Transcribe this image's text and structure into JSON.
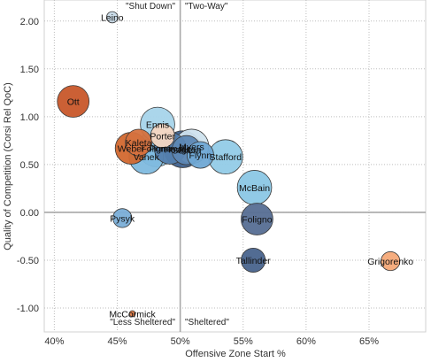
{
  "chart_data": {
    "type": "scatter",
    "title": "",
    "xlabel": "Offensive Zone Start %",
    "ylabel": "Quality of Competition (Corsi Rel QoC)",
    "xlim": [
      39.2,
      69.5
    ],
    "ylim": [
      -1.25,
      2.22
    ],
    "x_ticks": [
      40,
      45,
      50,
      55,
      60,
      65
    ],
    "x_tick_labels": [
      "40%",
      "45%",
      "50%",
      "55%",
      "60%",
      "65%"
    ],
    "y_ticks": [
      -1.0,
      -0.5,
      0.0,
      0.5,
      1.0,
      1.5,
      2.0
    ],
    "y_tick_labels": [
      "-1.00",
      "-0.50",
      "0.00",
      "0.50",
      "1.00",
      "1.50",
      "2.00"
    ],
    "grid": true,
    "reference_lines": {
      "x": 50,
      "y": 0
    },
    "quadrant_labels": {
      "top_left": "\"Shut Down\"",
      "top_right": "\"Two-Way\"",
      "bottom_left": "\"Less Sheltered\"",
      "bottom_right": "\"Sheltered\""
    },
    "points": [
      {
        "name": "Leino",
        "x": 44.6,
        "y": 2.04,
        "size": 3,
        "color": "#c7d9e6"
      },
      {
        "name": "Ott",
        "x": 41.5,
        "y": 1.16,
        "size": 11,
        "color": "#c8572a"
      },
      {
        "name": "Ennis",
        "x": 48.2,
        "y": 0.92,
        "size": 12,
        "color": "#a6d4ea"
      },
      {
        "name": "Porter",
        "x": 48.6,
        "y": 0.8,
        "size": 8,
        "color": "#f6d7c3"
      },
      {
        "name": "Kaleta",
        "x": 46.7,
        "y": 0.73,
        "size": 9,
        "color": "#d5713e"
      },
      {
        "name": "Weber",
        "x": 46.1,
        "y": 0.67,
        "size": 11,
        "color": "#d2682f"
      },
      {
        "name": "Foligno",
        "x": 48.1,
        "y": 0.67,
        "size": 13,
        "color": "#8cc3e1"
      },
      {
        "name": "Vanek",
        "x": 47.3,
        "y": 0.58,
        "size": 12,
        "color": "#7fbadf"
      },
      {
        "name": "Pominville",
        "x": 49.2,
        "y": 0.67,
        "size": 11,
        "color": "#547fae"
      },
      {
        "name": "Myers",
        "x": 50.9,
        "y": 0.69,
        "size": 12,
        "color": "#cfe3ee"
      },
      {
        "name": "Hodgson",
        "x": 50.2,
        "y": 0.66,
        "size": 13,
        "color": "#3f628f"
      },
      {
        "name": "Sekera",
        "x": 50.5,
        "y": 0.65,
        "size": 10,
        "color": "#5d87b4"
      },
      {
        "name": "Flynn",
        "x": 51.6,
        "y": 0.6,
        "size": 9,
        "color": "#6fa8d4"
      },
      {
        "name": "Stafford",
        "x": 53.6,
        "y": 0.58,
        "size": 12,
        "color": "#92cbe7"
      },
      {
        "name": "McBain",
        "x": 55.9,
        "y": 0.26,
        "size": 12,
        "color": "#8bc7e5"
      },
      {
        "name": "Pysyk",
        "x": 45.4,
        "y": -0.06,
        "size": 6,
        "color": "#7aaed7"
      },
      {
        "name": "Foligno",
        "x": 56.1,
        "y": -0.07,
        "size": 11,
        "color": "#566e93"
      },
      {
        "name": "Tallinder",
        "x": 55.8,
        "y": -0.5,
        "size": 8,
        "color": "#49648d"
      },
      {
        "name": "Grigorenko",
        "x": 66.7,
        "y": -0.51,
        "size": 6,
        "color": "#f4a978"
      },
      {
        "name": "McCormick",
        "x": 46.2,
        "y": -1.06,
        "size": 1,
        "color": "#e07b45"
      }
    ]
  }
}
